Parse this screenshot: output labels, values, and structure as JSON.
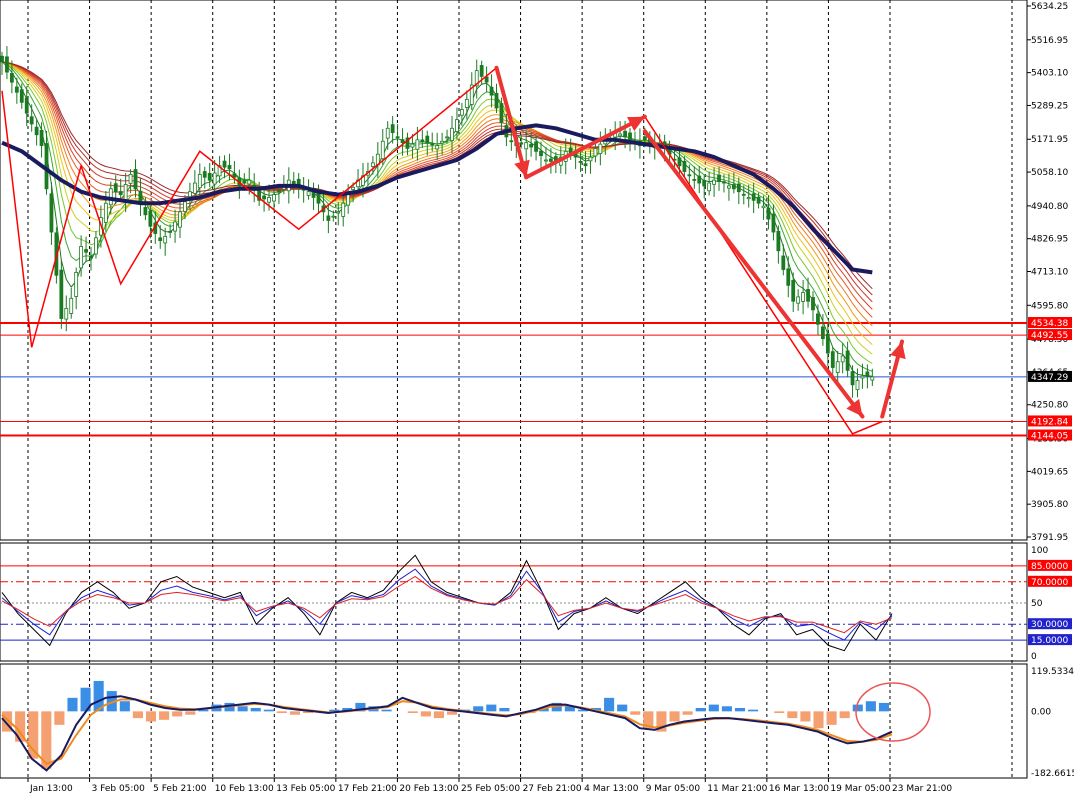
{
  "colors": {
    "background": "#ffffff",
    "grid": "#000000",
    "bull_candle": "#1b7a22",
    "bear_candle": "#1b7a22",
    "ma_slow": "#1a1a5e",
    "level_line": "#ff0000",
    "current_line": "#2255dd",
    "annotation": "#ee3333",
    "rsi_black": "#000000",
    "rsi_blue": "#1e22cc",
    "rsi_red": "#dd2222",
    "hist_pos": "#3a8ee6",
    "hist_neg": "#f4a070",
    "macd_line": "#1a1a5e",
    "signal_line": "#f08a1c"
  },
  "chart_data": [
    {
      "type": "candlestick",
      "name": "price",
      "ylim": [
        3791.95,
        5634.25
      ],
      "y_ticks": [
        "5634.25",
        "5516.95",
        "5403.10",
        "5289.25",
        "5171.95",
        "5058.10",
        "4940.80",
        "4826.95",
        "4713.10",
        "4595.80",
        "4478.50",
        "4364.65",
        "4250.80",
        "4133.50",
        "4019.65",
        "3905.80",
        "3791.95"
      ],
      "x_ticks": [
        "Jan 13:00",
        "3 Feb 05:00",
        "5 Feb 21:00",
        "10 Feb 13:00",
        "13 Feb 05:00",
        "17 Feb 21:00",
        "20 Feb 13:00",
        "25 Feb 05:00",
        "27 Feb 21:00",
        "4 Mar 13:00",
        "9 Mar 05:00",
        "11 Mar 21:00",
        "16 Mar 13:00",
        "19 Mar 05:00",
        "23 Mar 21:00"
      ],
      "price_levels": [
        {
          "label": "4534.38",
          "value": 4534.38,
          "style": "bold"
        },
        {
          "label": "4492.55",
          "value": 4492.55,
          "style": "thin"
        },
        {
          "label": "4192.84",
          "value": 4192.84,
          "style": "thin"
        },
        {
          "label": "4144.05",
          "value": 4144.05,
          "style": "bold"
        }
      ],
      "current_price": {
        "label": "4347.29",
        "value": 4347.29
      },
      "close_path": [
        [
          0,
          5440
        ],
        [
          4,
          5300
        ],
        [
          8,
          5150
        ],
        [
          10,
          4850
        ],
        [
          12,
          4550
        ],
        [
          14,
          4620
        ],
        [
          16,
          4800
        ],
        [
          18,
          4760
        ],
        [
          20,
          4900
        ],
        [
          22,
          5000
        ],
        [
          24,
          4980
        ],
        [
          26,
          5050
        ],
        [
          28,
          4950
        ],
        [
          30,
          4870
        ],
        [
          32,
          4820
        ],
        [
          34,
          4850
        ],
        [
          36,
          4920
        ],
        [
          38,
          4990
        ],
        [
          40,
          5050
        ],
        [
          42,
          5030
        ],
        [
          44,
          5080
        ],
        [
          46,
          5070
        ],
        [
          48,
          5010
        ],
        [
          50,
          5030
        ],
        [
          52,
          4960
        ],
        [
          54,
          4970
        ],
        [
          56,
          4990
        ],
        [
          58,
          5030
        ],
        [
          60,
          5000
        ],
        [
          62,
          4990
        ],
        [
          64,
          4950
        ],
        [
          66,
          4890
        ],
        [
          68,
          4920
        ],
        [
          70,
          4980
        ],
        [
          72,
          5030
        ],
        [
          74,
          5060
        ],
        [
          76,
          5120
        ],
        [
          78,
          5210
        ],
        [
          80,
          5180
        ],
        [
          82,
          5140
        ],
        [
          84,
          5170
        ],
        [
          86,
          5160
        ],
        [
          88,
          5150
        ],
        [
          90,
          5180
        ],
        [
          92,
          5240
        ],
        [
          94,
          5310
        ],
        [
          96,
          5410
        ],
        [
          98,
          5370
        ],
        [
          100,
          5280
        ],
        [
          102,
          5180
        ],
        [
          104,
          5150
        ],
        [
          106,
          5160
        ],
        [
          108,
          5130
        ],
        [
          110,
          5100
        ],
        [
          112,
          5090
        ],
        [
          114,
          5130
        ],
        [
          116,
          5110
        ],
        [
          118,
          5080
        ],
        [
          120,
          5140
        ],
        [
          122,
          5170
        ],
        [
          124,
          5200
        ],
        [
          126,
          5180
        ],
        [
          128,
          5160
        ],
        [
          130,
          5170
        ],
        [
          132,
          5150
        ],
        [
          134,
          5140
        ],
        [
          136,
          5100
        ],
        [
          138,
          5060
        ],
        [
          140,
          5030
        ],
        [
          142,
          5010
        ],
        [
          144,
          5030
        ],
        [
          146,
          5020
        ],
        [
          148,
          5000
        ],
        [
          150,
          4980
        ],
        [
          152,
          4960
        ],
        [
          154,
          4940
        ],
        [
          156,
          4850
        ],
        [
          158,
          4720
        ],
        [
          160,
          4610
        ],
        [
          162,
          4640
        ],
        [
          164,
          4580
        ],
        [
          166,
          4480
        ],
        [
          168,
          4380
        ],
        [
          170,
          4420
        ],
        [
          172,
          4320
        ],
        [
          174,
          4350
        ],
        [
          176,
          4347.29
        ]
      ],
      "ma_slow": [
        [
          0,
          5160
        ],
        [
          4,
          5130
        ],
        [
          8,
          5080
        ],
        [
          12,
          5030
        ],
        [
          16,
          4990
        ],
        [
          20,
          4970
        ],
        [
          24,
          4960
        ],
        [
          28,
          4950
        ],
        [
          32,
          4950
        ],
        [
          36,
          4960
        ],
        [
          40,
          4970
        ],
        [
          44,
          4990
        ],
        [
          48,
          5000
        ],
        [
          52,
          5000
        ],
        [
          56,
          5010
        ],
        [
          60,
          5010
        ],
        [
          64,
          4990
        ],
        [
          68,
          4980
        ],
        [
          72,
          4990
        ],
        [
          76,
          5010
        ],
        [
          80,
          5040
        ],
        [
          84,
          5060
        ],
        [
          88,
          5080
        ],
        [
          92,
          5100
        ],
        [
          96,
          5140
        ],
        [
          100,
          5190
        ],
        [
          104,
          5210
        ],
        [
          108,
          5220
        ],
        [
          112,
          5210
        ],
        [
          116,
          5190
        ],
        [
          120,
          5170
        ],
        [
          124,
          5170
        ],
        [
          128,
          5160
        ],
        [
          132,
          5150
        ],
        [
          136,
          5140
        ],
        [
          140,
          5130
        ],
        [
          144,
          5110
        ],
        [
          148,
          5080
        ],
        [
          152,
          5050
        ],
        [
          156,
          5000
        ],
        [
          160,
          4940
        ],
        [
          164,
          4860
        ],
        [
          168,
          4790
        ],
        [
          172,
          4720
        ],
        [
          176,
          4710
        ]
      ],
      "annotation_zigzag": [
        [
          0,
          5340
        ],
        [
          6,
          4450
        ],
        [
          16,
          5080
        ],
        [
          24,
          4670
        ],
        [
          40,
          5130
        ],
        [
          60,
          4860
        ],
        [
          100,
          5420
        ],
        [
          106,
          5040
        ],
        [
          130,
          5250
        ],
        [
          172,
          4150
        ],
        [
          178,
          4192.84
        ]
      ],
      "annotation_arrows": [
        {
          "from": [
            100,
            5420
          ],
          "to": [
            106,
            5040
          ]
        },
        {
          "from": [
            106,
            5040
          ],
          "to": [
            130,
            5250
          ]
        },
        {
          "from": [
            130,
            5200
          ],
          "to": [
            174,
            4210
          ]
        },
        {
          "from": [
            178,
            4210
          ],
          "to": [
            182,
            4470
          ]
        }
      ]
    },
    {
      "type": "line",
      "name": "oscillator",
      "ylim": [
        0,
        100
      ],
      "y_ticks": [
        "100",
        "50",
        "0"
      ],
      "levels": [
        {
          "label": "85.0000",
          "value": 85,
          "color": "#ff0000",
          "style": "solid"
        },
        {
          "label": "70.0000",
          "value": 70,
          "color": "#ff0000",
          "style": "dashdot"
        },
        {
          "label": "30.0000",
          "value": 30,
          "color": "#2222cc",
          "style": "dashdot"
        },
        {
          "label": "15.0000",
          "value": 15,
          "color": "#2222cc",
          "style": "solid"
        }
      ],
      "series": [
        {
          "color": "#000000",
          "values": [
            60,
            40,
            25,
            10,
            40,
            60,
            70,
            60,
            45,
            50,
            70,
            75,
            65,
            60,
            55,
            60,
            30,
            45,
            55,
            40,
            20,
            50,
            60,
            55,
            62,
            80,
            95,
            70,
            60,
            55,
            50,
            48,
            60,
            90,
            60,
            25,
            40,
            45,
            55,
            45,
            40,
            50,
            60,
            70,
            55,
            45,
            30,
            20,
            35,
            40,
            20,
            25,
            10,
            5,
            30,
            15,
            40
          ]
        },
        {
          "color": "#1e22cc",
          "values": [
            55,
            42,
            30,
            20,
            42,
            55,
            62,
            57,
            48,
            50,
            62,
            66,
            60,
            57,
            53,
            57,
            38,
            46,
            52,
            43,
            30,
            50,
            57,
            54,
            58,
            72,
            82,
            66,
            58,
            54,
            50,
            48,
            57,
            80,
            60,
            32,
            42,
            45,
            52,
            45,
            42,
            49,
            56,
            62,
            52,
            45,
            35,
            28,
            36,
            38,
            28,
            30,
            22,
            15,
            32,
            25,
            38
          ]
        },
        {
          "color": "#dd2222",
          "values": [
            52,
            44,
            35,
            28,
            42,
            52,
            58,
            55,
            50,
            50,
            58,
            60,
            58,
            55,
            52,
            55,
            42,
            47,
            50,
            45,
            36,
            49,
            54,
            53,
            56,
            66,
            75,
            64,
            57,
            53,
            50,
            49,
            55,
            72,
            58,
            38,
            43,
            45,
            50,
            45,
            43,
            48,
            53,
            58,
            50,
            45,
            38,
            33,
            37,
            37,
            32,
            32,
            27,
            22,
            33,
            30,
            36
          ]
        }
      ]
    },
    {
      "type": "bar+line",
      "name": "macd",
      "ylim": [
        -182.6615,
        119.5334
      ],
      "y_ticks": [
        "119.5334",
        "0.00",
        "-182.6615"
      ],
      "histogram": [
        -60,
        -90,
        -140,
        -170,
        -40,
        40,
        70,
        90,
        60,
        30,
        -20,
        -30,
        -25,
        -15,
        -10,
        5,
        20,
        25,
        15,
        10,
        5,
        -5,
        -10,
        -5,
        0,
        5,
        10,
        25,
        15,
        5,
        0,
        -5,
        -15,
        -20,
        -10,
        5,
        15,
        20,
        10,
        0,
        -5,
        10,
        25,
        15,
        5,
        10,
        40,
        20,
        -10,
        -50,
        -60,
        -30,
        -10,
        10,
        20,
        15,
        10,
        5,
        0,
        -5,
        -20,
        -30,
        -50,
        -40,
        -20,
        20,
        30,
        25
      ],
      "macd_line": [
        -20,
        -70,
        -140,
        -175,
        -130,
        -40,
        20,
        40,
        45,
        35,
        20,
        10,
        5,
        5,
        10,
        15,
        20,
        25,
        20,
        10,
        5,
        0,
        -5,
        0,
        5,
        10,
        15,
        40,
        25,
        10,
        5,
        0,
        -5,
        -10,
        -15,
        -5,
        5,
        20,
        20,
        10,
        0,
        -10,
        -20,
        -50,
        -55,
        -40,
        -30,
        -25,
        -20,
        -20,
        -25,
        -30,
        -35,
        -40,
        -50,
        -60,
        -80,
        -95,
        -90,
        -80,
        -60
      ],
      "signal_line": [
        -10,
        -50,
        -110,
        -155,
        -140,
        -70,
        -10,
        20,
        35,
        35,
        25,
        15,
        8,
        6,
        9,
        14,
        18,
        22,
        20,
        13,
        7,
        2,
        -3,
        -1,
        3,
        8,
        13,
        30,
        26,
        14,
        7,
        2,
        -3,
        -8,
        -12,
        -8,
        2,
        14,
        18,
        12,
        3,
        -6,
        -15,
        -38,
        -48,
        -42,
        -34,
        -28,
        -22,
        -21,
        -23,
        -27,
        -32,
        -37,
        -45,
        -55,
        -72,
        -88,
        -90,
        -84,
        -68
      ]
    }
  ]
}
